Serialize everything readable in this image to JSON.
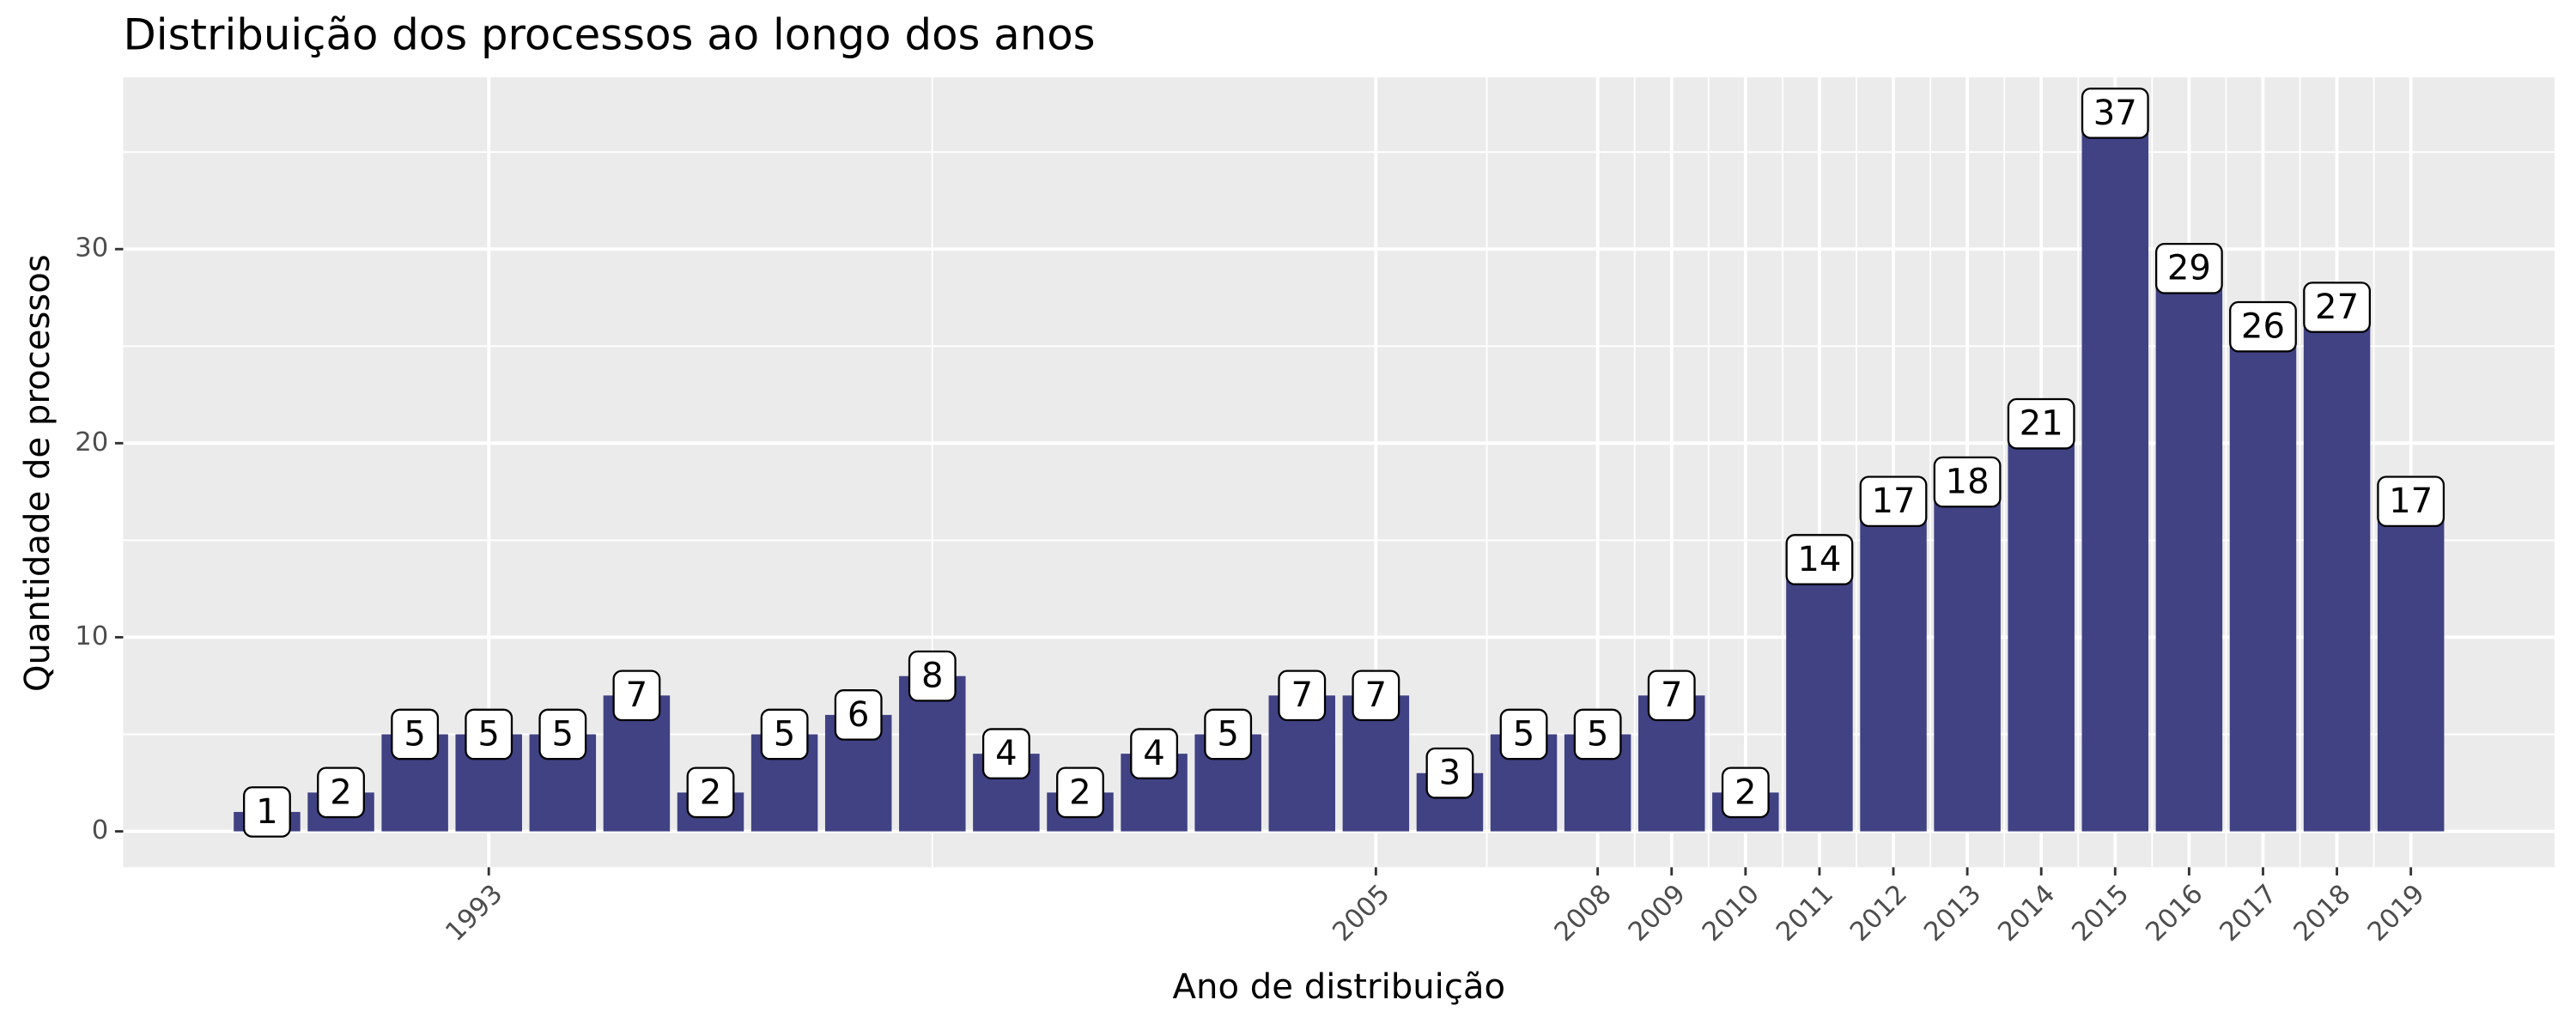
{
  "chart_data": {
    "type": "bar",
    "title": "Distribuição dos processos ao longo dos anos",
    "xlabel": "Ano de distribuição",
    "ylabel": "Quantidade de processos",
    "x": [
      1990,
      1991,
      1992,
      1993,
      1994,
      1995,
      1996,
      1997,
      1998,
      1999,
      2000,
      2001,
      2002,
      2003,
      2004,
      2005,
      2006,
      2007,
      2008,
      2009,
      2010,
      2011,
      2012,
      2013,
      2014,
      2015,
      2016,
      2017,
      2018,
      2019
    ],
    "values": [
      1,
      2,
      5,
      5,
      5,
      7,
      2,
      5,
      6,
      8,
      4,
      2,
      4,
      5,
      7,
      7,
      3,
      5,
      5,
      7,
      2,
      14,
      17,
      18,
      21,
      37,
      29,
      26,
      27,
      17
    ],
    "color": "#404284",
    "xlim": [
      1988.055,
      2020.945
    ],
    "xticks": [
      1993,
      2005,
      2008,
      2009,
      2010,
      2011,
      2012,
      2013,
      2014,
      2015,
      2016,
      2017,
      2018,
      2019
    ],
    "ylim": [
      -1.85,
      38.85
    ],
    "yticks": [
      0,
      10,
      20,
      30
    ],
    "grid": true
  }
}
